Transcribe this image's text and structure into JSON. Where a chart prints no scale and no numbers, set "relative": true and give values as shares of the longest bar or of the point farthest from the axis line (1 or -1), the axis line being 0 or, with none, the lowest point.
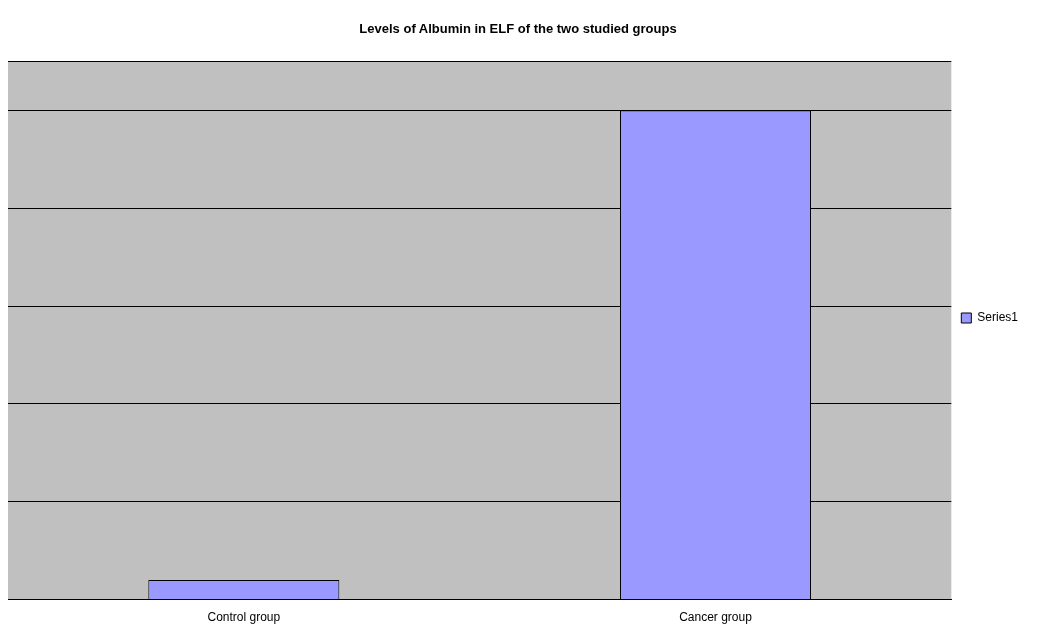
{
  "chart_data": {
    "type": "bar",
    "title": "Levels of Albumin in ELF of the two studied groups",
    "categories": [
      "Control group",
      "Cancer group"
    ],
    "relative": true,
    "series": [
      {
        "name": "Series1",
        "color": "#9999ff",
        "values": [
          0.04,
          1
        ]
      }
    ],
    "grid": "y",
    "legend": "right"
  }
}
